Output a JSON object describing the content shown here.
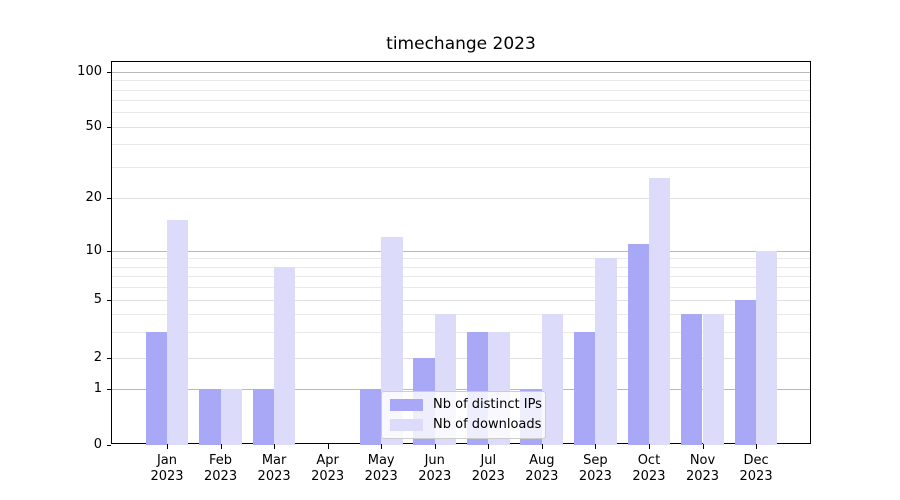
{
  "title": "timechange 2023",
  "chart_data": {
    "type": "bar",
    "title": "timechange 2023",
    "categories": [
      "Jan",
      "Feb",
      "Mar",
      "Apr",
      "May",
      "Jun",
      "Jul",
      "Aug",
      "Sep",
      "Oct",
      "Nov",
      "Dec"
    ],
    "x_tick_year": "2023",
    "series": [
      {
        "name": "Nb of distinct IPs",
        "color": "#a8a8f6",
        "values": [
          3,
          1,
          1,
          0,
          1,
          2,
          3,
          1,
          3,
          11,
          4,
          5
        ]
      },
      {
        "name": "Nb of downloads",
        "color": "#dcdcfa",
        "values": [
          15,
          1,
          8,
          0,
          12,
          4,
          3,
          4,
          9,
          26,
          4,
          10
        ]
      }
    ],
    "ylabel": "",
    "xlabel": "",
    "yscale": "log-above-1-with-zero-baseline",
    "ylim": [
      0,
      110
    ],
    "ytick_values": [
      0,
      1,
      2,
      5,
      10,
      20,
      50,
      100
    ],
    "ytick_labels": [
      "0",
      "1",
      "2",
      "5",
      "10",
      "20",
      "50",
      "100"
    ],
    "grid": "horizontal",
    "legend": {
      "position": "lower-center",
      "entries": [
        "Nb of distinct IPs",
        "Nb of downloads"
      ]
    }
  }
}
